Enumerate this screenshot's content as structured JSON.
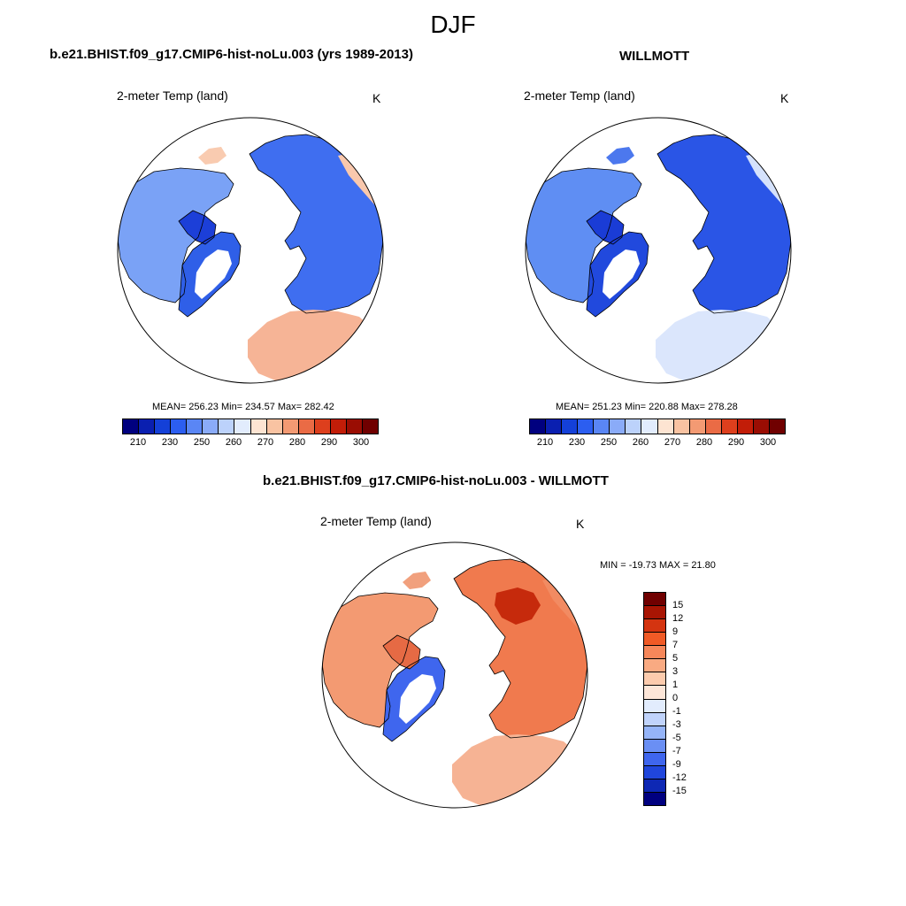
{
  "season": "DJF",
  "panels": {
    "model": {
      "title": "b.e21.BHIST.f09_g17.CMIP6-hist-noLu.003 (yrs 1989-2013)",
      "variable": "2-meter Temp (land)",
      "units": "K",
      "stats": "MEAN= 256.23  Min= 234.57  Max= 282.42"
    },
    "obs": {
      "title": "WILLMOTT",
      "variable": "2-meter Temp (land)",
      "units": "K",
      "stats": "MEAN= 251.23  Min= 220.88  Max= 278.28"
    },
    "diff": {
      "title": "b.e21.BHIST.f09_g17.CMIP6-hist-noLu.003 - WILLMOTT",
      "variable": "2-meter Temp (land)",
      "units": "K",
      "stats": "MIN = -19.73 MAX =  21.80"
    }
  },
  "abs_colorbar": {
    "colors": [
      "#00007f",
      "#0a1fb0",
      "#1440d8",
      "#2c5ef0",
      "#5a86f5",
      "#8aabf8",
      "#bcd2fb",
      "#e2ecfd",
      "#fde4d2",
      "#f9c3a2",
      "#f39a73",
      "#ea6b45",
      "#dd3f1d",
      "#c21d08",
      "#9a0d03",
      "#700000"
    ],
    "labels": [
      "210",
      "230",
      "250",
      "260",
      "270",
      "280",
      "290",
      "300"
    ]
  },
  "diff_colorbar": {
    "colors": [
      "#700000",
      "#a81503",
      "#d43410",
      "#f05a26",
      "#f6875a",
      "#f9aa82",
      "#fccbad",
      "#fde6d8",
      "#e2ecfd",
      "#c0d3fb",
      "#95b4f8",
      "#6a8ff4",
      "#3f66ee",
      "#2046dc",
      "#0e28b4",
      "#000080"
    ],
    "labels": [
      "15",
      "12",
      "9",
      "7",
      "5",
      "3",
      "1",
      "0",
      "-1",
      "-3",
      "-5",
      "-7",
      "-9",
      "-12",
      "-15"
    ]
  },
  "map_fill": {
    "model": {
      "ocean": "#ffffff",
      "eurasia": "#3f6ef0",
      "north_america": "#7aa2f6",
      "greenland_ice": "#ffffff",
      "europe": "#f6b496",
      "east_asia": "#f9c8ad",
      "arctic_islands": "#1c3fd8",
      "alaska": "#f9cbb0",
      "greenland_belt": "#2f5fe8"
    },
    "obs": {
      "ocean": "#ffffff",
      "eurasia": "#2a55e6",
      "north_america": "#5f8ef3",
      "greenland_ice": "#ffffff",
      "europe": "#dbe6fc",
      "east_asia": "#d5e2fc",
      "arctic_islands": "#1a3cd6",
      "alaska": "#4c78ee",
      "greenland_belt": "#2149dd"
    },
    "diff": {
      "ocean": "#ffffff",
      "eurasia": "#f07a4e",
      "north_america": "#f39a72",
      "greenland_ice": "#ffffff",
      "europe": "#f6b394",
      "east_asia": "#f28b62",
      "arctic_islands": "#e66a44",
      "alaska": "#f1a07d",
      "greenland_belt": "#3f66ee",
      "siberia_hot": "#c62a0c"
    }
  }
}
